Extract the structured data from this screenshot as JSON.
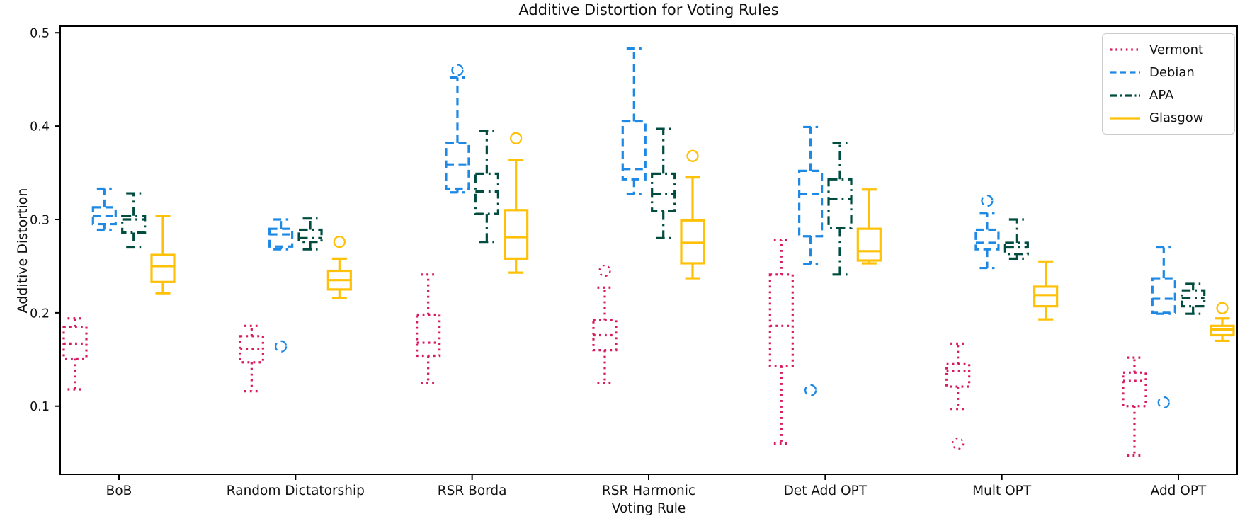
{
  "title": "Additive Distortion for Voting Rules",
  "x_axis_label": "Voting Rule",
  "y_axis_label": "Additive Distortion",
  "y_tick_labels": [
    "0.5",
    "0.4",
    "0.3",
    "0.2",
    "0.1"
  ],
  "y_tick_values": [
    0.5,
    0.4,
    0.3,
    0.2,
    0.1
  ],
  "legend": {
    "position": "upper right"
  },
  "chart_data": {
    "type": "boxplot",
    "title": "Additive Distortion for Voting Rules",
    "xlabel": "Voting Rule",
    "ylabel": "Additive Distortion",
    "ylim": [
      0.027,
      0.507
    ],
    "grid": false,
    "categories": [
      "BoB",
      "Random Dictatorship",
      "RSR Borda",
      "RSR Harmonic",
      "Det Add OPT",
      "Mult OPT",
      "Add OPT"
    ],
    "series": [
      {
        "name": "Vermont",
        "color": "#D81B60",
        "linestyle": "dotted",
        "boxes": [
          {
            "whislo": 0.118,
            "q1": 0.151,
            "med": 0.167,
            "q3": 0.185,
            "whishi": 0.194,
            "fliers": []
          },
          {
            "whislo": 0.116,
            "q1": 0.147,
            "med": 0.161,
            "q3": 0.175,
            "whishi": 0.186,
            "fliers": []
          },
          {
            "whislo": 0.125,
            "q1": 0.154,
            "med": 0.168,
            "q3": 0.198,
            "whishi": 0.241,
            "fliers": []
          },
          {
            "whislo": 0.125,
            "q1": 0.16,
            "med": 0.176,
            "q3": 0.192,
            "whishi": 0.227,
            "fliers": [
              0.245
            ]
          },
          {
            "whislo": 0.06,
            "q1": 0.143,
            "med": 0.186,
            "q3": 0.241,
            "whishi": 0.278,
            "fliers": []
          },
          {
            "whislo": 0.097,
            "q1": 0.121,
            "med": 0.138,
            "q3": 0.145,
            "whishi": 0.167,
            "fliers": [
              0.06
            ]
          },
          {
            "whislo": 0.047,
            "q1": 0.1,
            "med": 0.127,
            "q3": 0.136,
            "whishi": 0.152,
            "fliers": []
          }
        ]
      },
      {
        "name": "Debian",
        "color": "#1E88E5",
        "linestyle": "dashed",
        "boxes": [
          {
            "whislo": 0.289,
            "q1": 0.295,
            "med": 0.304,
            "q3": 0.313,
            "whishi": 0.333,
            "fliers": []
          },
          {
            "whislo": 0.268,
            "q1": 0.271,
            "med": 0.284,
            "q3": 0.29,
            "whishi": 0.3,
            "fliers": [
              0.164
            ]
          },
          {
            "whislo": 0.329,
            "q1": 0.333,
            "med": 0.359,
            "q3": 0.382,
            "whishi": 0.452,
            "fliers": [
              0.46
            ]
          },
          {
            "whislo": 0.327,
            "q1": 0.343,
            "med": 0.354,
            "q3": 0.405,
            "whishi": 0.483,
            "fliers": []
          },
          {
            "whislo": 0.252,
            "q1": 0.282,
            "med": 0.327,
            "q3": 0.352,
            "whishi": 0.399,
            "fliers": [
              0.117
            ]
          },
          {
            "whislo": 0.248,
            "q1": 0.268,
            "med": 0.275,
            "q3": 0.289,
            "whishi": 0.307,
            "fliers": [
              0.32
            ]
          },
          {
            "whislo": 0.199,
            "q1": 0.2,
            "med": 0.215,
            "q3": 0.237,
            "whishi": 0.27,
            "fliers": [
              0.104
            ]
          }
        ]
      },
      {
        "name": "APA",
        "color": "#004D40",
        "linestyle": "dashdot",
        "boxes": [
          {
            "whislo": 0.27,
            "q1": 0.286,
            "med": 0.3,
            "q3": 0.304,
            "whishi": 0.328,
            "fliers": []
          },
          {
            "whislo": 0.268,
            "q1": 0.276,
            "med": 0.28,
            "q3": 0.289,
            "whishi": 0.301,
            "fliers": []
          },
          {
            "whislo": 0.276,
            "q1": 0.306,
            "med": 0.33,
            "q3": 0.349,
            "whishi": 0.395,
            "fliers": []
          },
          {
            "whislo": 0.28,
            "q1": 0.309,
            "med": 0.327,
            "q3": 0.349,
            "whishi": 0.397,
            "fliers": []
          },
          {
            "whislo": 0.241,
            "q1": 0.291,
            "med": 0.322,
            "q3": 0.343,
            "whishi": 0.382,
            "fliers": []
          },
          {
            "whislo": 0.258,
            "q1": 0.263,
            "med": 0.27,
            "q3": 0.275,
            "whishi": 0.3,
            "fliers": []
          },
          {
            "whislo": 0.199,
            "q1": 0.207,
            "med": 0.216,
            "q3": 0.224,
            "whishi": 0.231,
            "fliers": []
          }
        ]
      },
      {
        "name": "Glasgow",
        "color": "#FFC107",
        "linestyle": "solid",
        "boxes": [
          {
            "whislo": 0.221,
            "q1": 0.233,
            "med": 0.25,
            "q3": 0.262,
            "whishi": 0.304,
            "fliers": []
          },
          {
            "whislo": 0.216,
            "q1": 0.225,
            "med": 0.235,
            "q3": 0.245,
            "whishi": 0.258,
            "fliers": [
              0.276
            ]
          },
          {
            "whislo": 0.243,
            "q1": 0.258,
            "med": 0.281,
            "q3": 0.31,
            "whishi": 0.364,
            "fliers": [
              0.387
            ]
          },
          {
            "whislo": 0.237,
            "q1": 0.253,
            "med": 0.275,
            "q3": 0.299,
            "whishi": 0.345,
            "fliers": [
              0.368
            ]
          },
          {
            "whislo": 0.253,
            "q1": 0.256,
            "med": 0.266,
            "q3": 0.29,
            "whishi": 0.332,
            "fliers": []
          },
          {
            "whislo": 0.193,
            "q1": 0.207,
            "med": 0.219,
            "q3": 0.228,
            "whishi": 0.255,
            "fliers": []
          },
          {
            "whislo": 0.17,
            "q1": 0.176,
            "med": 0.182,
            "q3": 0.186,
            "whishi": 0.194,
            "fliers": [
              0.205
            ]
          }
        ]
      }
    ]
  }
}
